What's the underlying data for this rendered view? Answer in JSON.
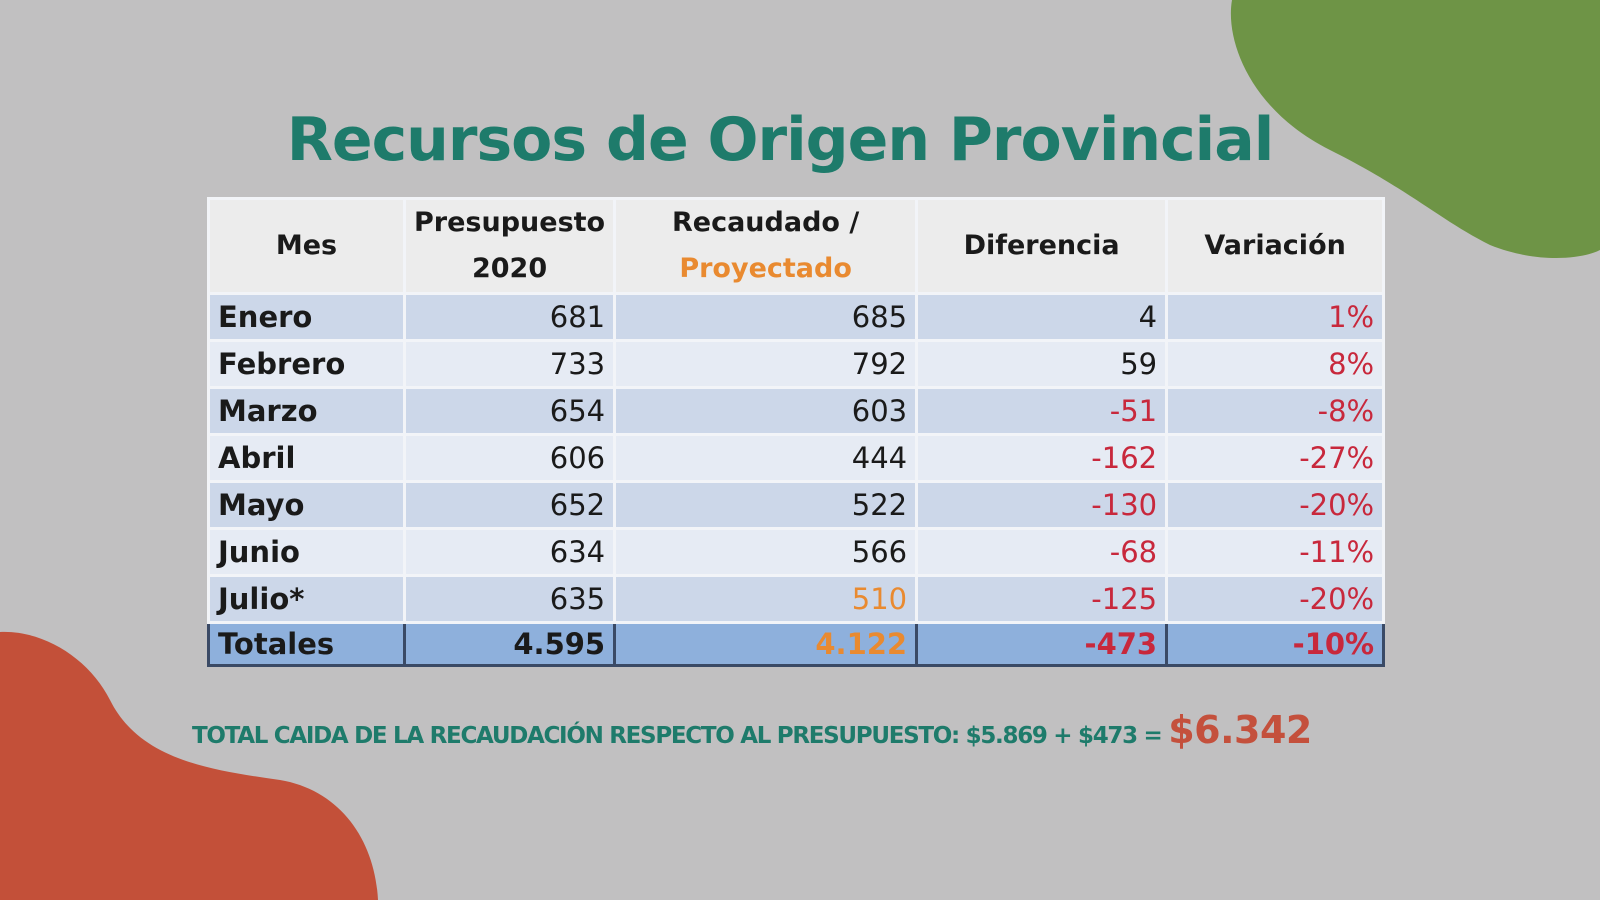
{
  "title": "Recursos de Origen Provincial",
  "table": {
    "header": {
      "mes": "Mes",
      "presupuesto": [
        "Presupuesto",
        "2020"
      ],
      "recaudado": "Recaudado /",
      "proyectado": "Proyectado",
      "diferencia": "Diferencia",
      "variacion": "Variación"
    },
    "rows": [
      [
        "Enero",
        "681",
        "685",
        "4",
        "1%"
      ],
      [
        "Febrero",
        "733",
        "792",
        "59",
        "8%"
      ],
      [
        "Marzo",
        "654",
        "603",
        "-51",
        "-8%"
      ],
      [
        "Abril",
        "606",
        "444",
        "-162",
        "-27%"
      ],
      [
        "Mayo",
        "652",
        "522",
        "-130",
        "-20%"
      ],
      [
        "Junio",
        "634",
        "566",
        "-68",
        "-11%"
      ],
      [
        "Julio*",
        "635",
        "510",
        "-125",
        "-20%"
      ]
    ],
    "totals": [
      "Totales",
      "4.595",
      "4.122",
      "-473",
      "-10%"
    ]
  },
  "footer": {
    "text": "TOTAL CAIDA DE LA RECAUDACIÓN RESPECTO AL PRESUPUESTO: $5.869 + $473 =",
    "total": "$6.342"
  }
}
